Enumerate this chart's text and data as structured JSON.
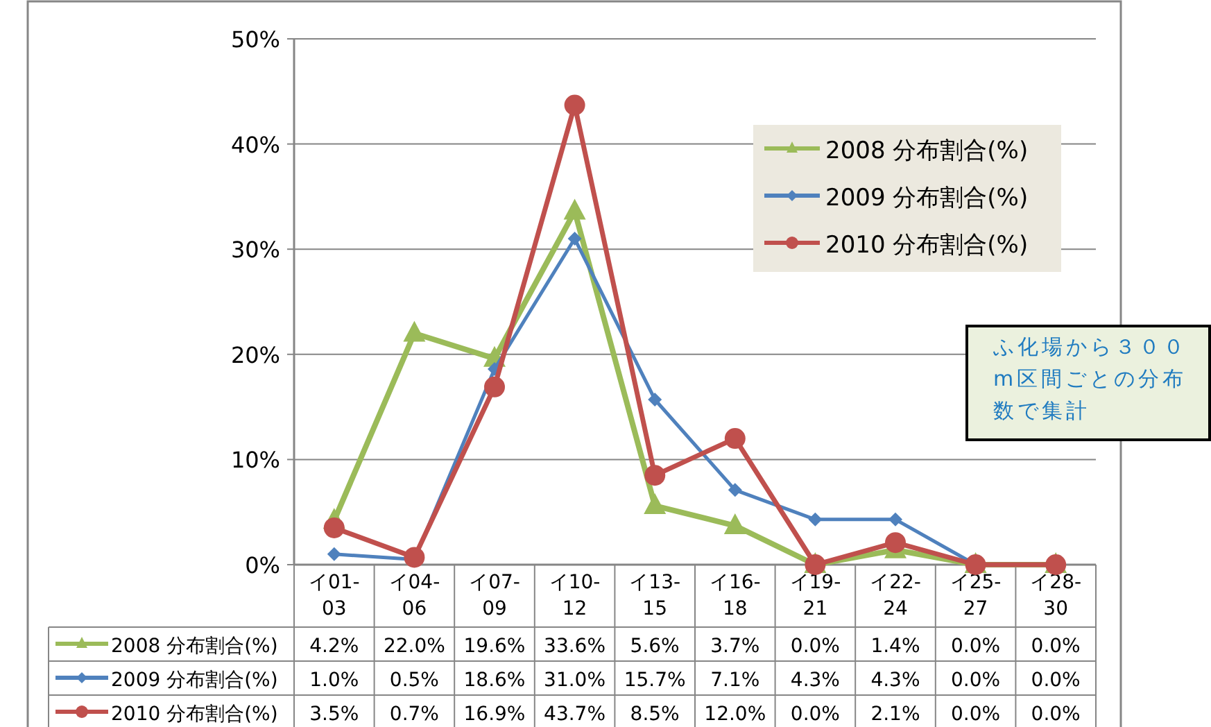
{
  "chart_data": {
    "type": "line",
    "categories": [
      "イ01-03",
      "イ04-06",
      "イ07-09",
      "イ10-12",
      "イ13-15",
      "イ16-18",
      "イ19-21",
      "イ22-24",
      "イ25-27",
      "イ28-30"
    ],
    "series": [
      {
        "name": "2008  分布割合(%)",
        "color": "#9bbb59",
        "marker": "triangle",
        "values": [
          4.2,
          22.0,
          19.6,
          33.6,
          5.6,
          3.7,
          0.0,
          1.4,
          0.0,
          0.0
        ],
        "value_labels": [
          "4.2%",
          "22.0%",
          "19.6%",
          "33.6%",
          "5.6%",
          "3.7%",
          "0.0%",
          "1.4%",
          "0.0%",
          "0.0%"
        ]
      },
      {
        "name": "2009  分布割合(%)",
        "color": "#4f81bd",
        "marker": "diamond",
        "values": [
          1.0,
          0.5,
          18.6,
          31.0,
          15.7,
          7.1,
          4.3,
          4.3,
          0.0,
          0.0
        ],
        "value_labels": [
          "1.0%",
          "0.5%",
          "18.6%",
          "31.0%",
          "15.7%",
          "7.1%",
          "4.3%",
          "4.3%",
          "0.0%",
          "0.0%"
        ]
      },
      {
        "name": "2010  分布割合(%)",
        "color": "#c0504d",
        "marker": "circle",
        "values": [
          3.5,
          0.7,
          16.9,
          43.7,
          8.5,
          12.0,
          0.0,
          2.1,
          0.0,
          0.0
        ],
        "value_labels": [
          "3.5%",
          "0.7%",
          "16.9%",
          "43.7%",
          "8.5%",
          "12.0%",
          "0.0%",
          "2.1%",
          "0.0%",
          "0.0%"
        ]
      }
    ],
    "ylim": [
      0,
      50
    ],
    "yticks": [
      {
        "value": 0,
        "label": "0%"
      },
      {
        "value": 10,
        "label": "10%"
      },
      {
        "value": 20,
        "label": "20%"
      },
      {
        "value": 30,
        "label": "30%"
      },
      {
        "value": 40,
        "label": "40%"
      },
      {
        "value": 50,
        "label": "50%"
      }
    ],
    "grid": "y",
    "legend": "top right",
    "line_style": "solid",
    "annotations": [
      "ふ化場から３００m区間ごとの分布数で集計"
    ]
  }
}
